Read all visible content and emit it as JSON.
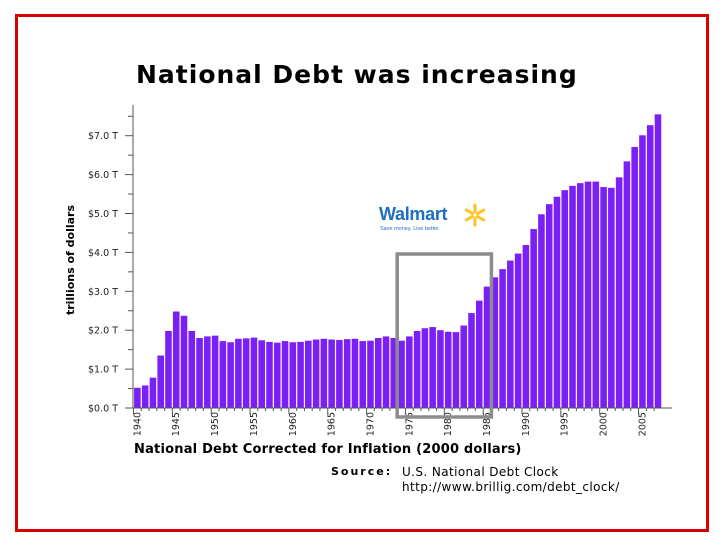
{
  "slide": {
    "title": "National Debt was increasing"
  },
  "logo": {
    "name": "Walmart",
    "tagline": "Save money. Live better.",
    "color": "#1f6fbf",
    "spark_color": "#ffc220"
  },
  "caption": "National Debt Corrected for Inflation (2000 dollars)",
  "source": {
    "label": "Source:",
    "text": "U.S. National Debt Clock",
    "url": "http://www.brillig.com/debt_clock/"
  },
  "colors": {
    "bar": "#7a1ff5",
    "highlight_box": "#8c8c8c",
    "frame": "#d80000"
  },
  "chart_data": {
    "type": "bar",
    "title": "",
    "xlabel": "",
    "ylabel": "trillions of dollars",
    "ylim": [
      0,
      7.5
    ],
    "y_ticks": [
      {
        "value": 0,
        "label": "$0.0 T"
      },
      {
        "value": 1,
        "label": "$1.0 T"
      },
      {
        "value": 2,
        "label": "$2.0 T"
      },
      {
        "value": 3,
        "label": "$3.0 T"
      },
      {
        "value": 4,
        "label": "$4.0 T"
      },
      {
        "value": 5,
        "label": "$5.0 T"
      },
      {
        "value": 6,
        "label": "$6.0 T"
      },
      {
        "value": 7,
        "label": "$7.0 T"
      }
    ],
    "x_tick_labels": [
      "1940",
      "1945",
      "1950",
      "1955",
      "1960",
      "1965",
      "1970",
      "1975",
      "1980",
      "1985",
      "1990",
      "1995",
      "2000",
      "2005"
    ],
    "grid": false,
    "highlight_range": [
      1974,
      1985
    ],
    "categories": [
      1940,
      1941,
      1942,
      1943,
      1944,
      1945,
      1946,
      1947,
      1948,
      1949,
      1950,
      1951,
      1952,
      1953,
      1954,
      1955,
      1956,
      1957,
      1958,
      1959,
      1960,
      1961,
      1962,
      1963,
      1964,
      1965,
      1966,
      1967,
      1968,
      1969,
      1970,
      1971,
      1972,
      1973,
      1974,
      1975,
      1976,
      1977,
      1978,
      1979,
      1980,
      1981,
      1982,
      1983,
      1984,
      1985,
      1986,
      1987,
      1988,
      1989,
      1990,
      1991,
      1992,
      1993,
      1994,
      1995,
      1996,
      1997,
      1998,
      1999,
      2000,
      2001,
      2002,
      2003,
      2004,
      2005,
      2006,
      2007
    ],
    "values": [
      0.52,
      0.58,
      0.78,
      1.35,
      1.98,
      2.48,
      2.37,
      1.98,
      1.8,
      1.84,
      1.86,
      1.72,
      1.69,
      1.78,
      1.79,
      1.81,
      1.74,
      1.7,
      1.68,
      1.72,
      1.69,
      1.7,
      1.73,
      1.76,
      1.78,
      1.76,
      1.75,
      1.77,
      1.78,
      1.72,
      1.73,
      1.8,
      1.84,
      1.8,
      1.73,
      1.84,
      1.98,
      2.05,
      2.08,
      2.0,
      1.96,
      1.95,
      2.12,
      2.44,
      2.76,
      3.12,
      3.36,
      3.57,
      3.79,
      3.97,
      4.19,
      4.6,
      4.98,
      5.24,
      5.43,
      5.6,
      5.71,
      5.78,
      5.82,
      5.82,
      5.68,
      5.66,
      5.93,
      6.34,
      6.71,
      7.01,
      7.27,
      7.55
    ]
  }
}
